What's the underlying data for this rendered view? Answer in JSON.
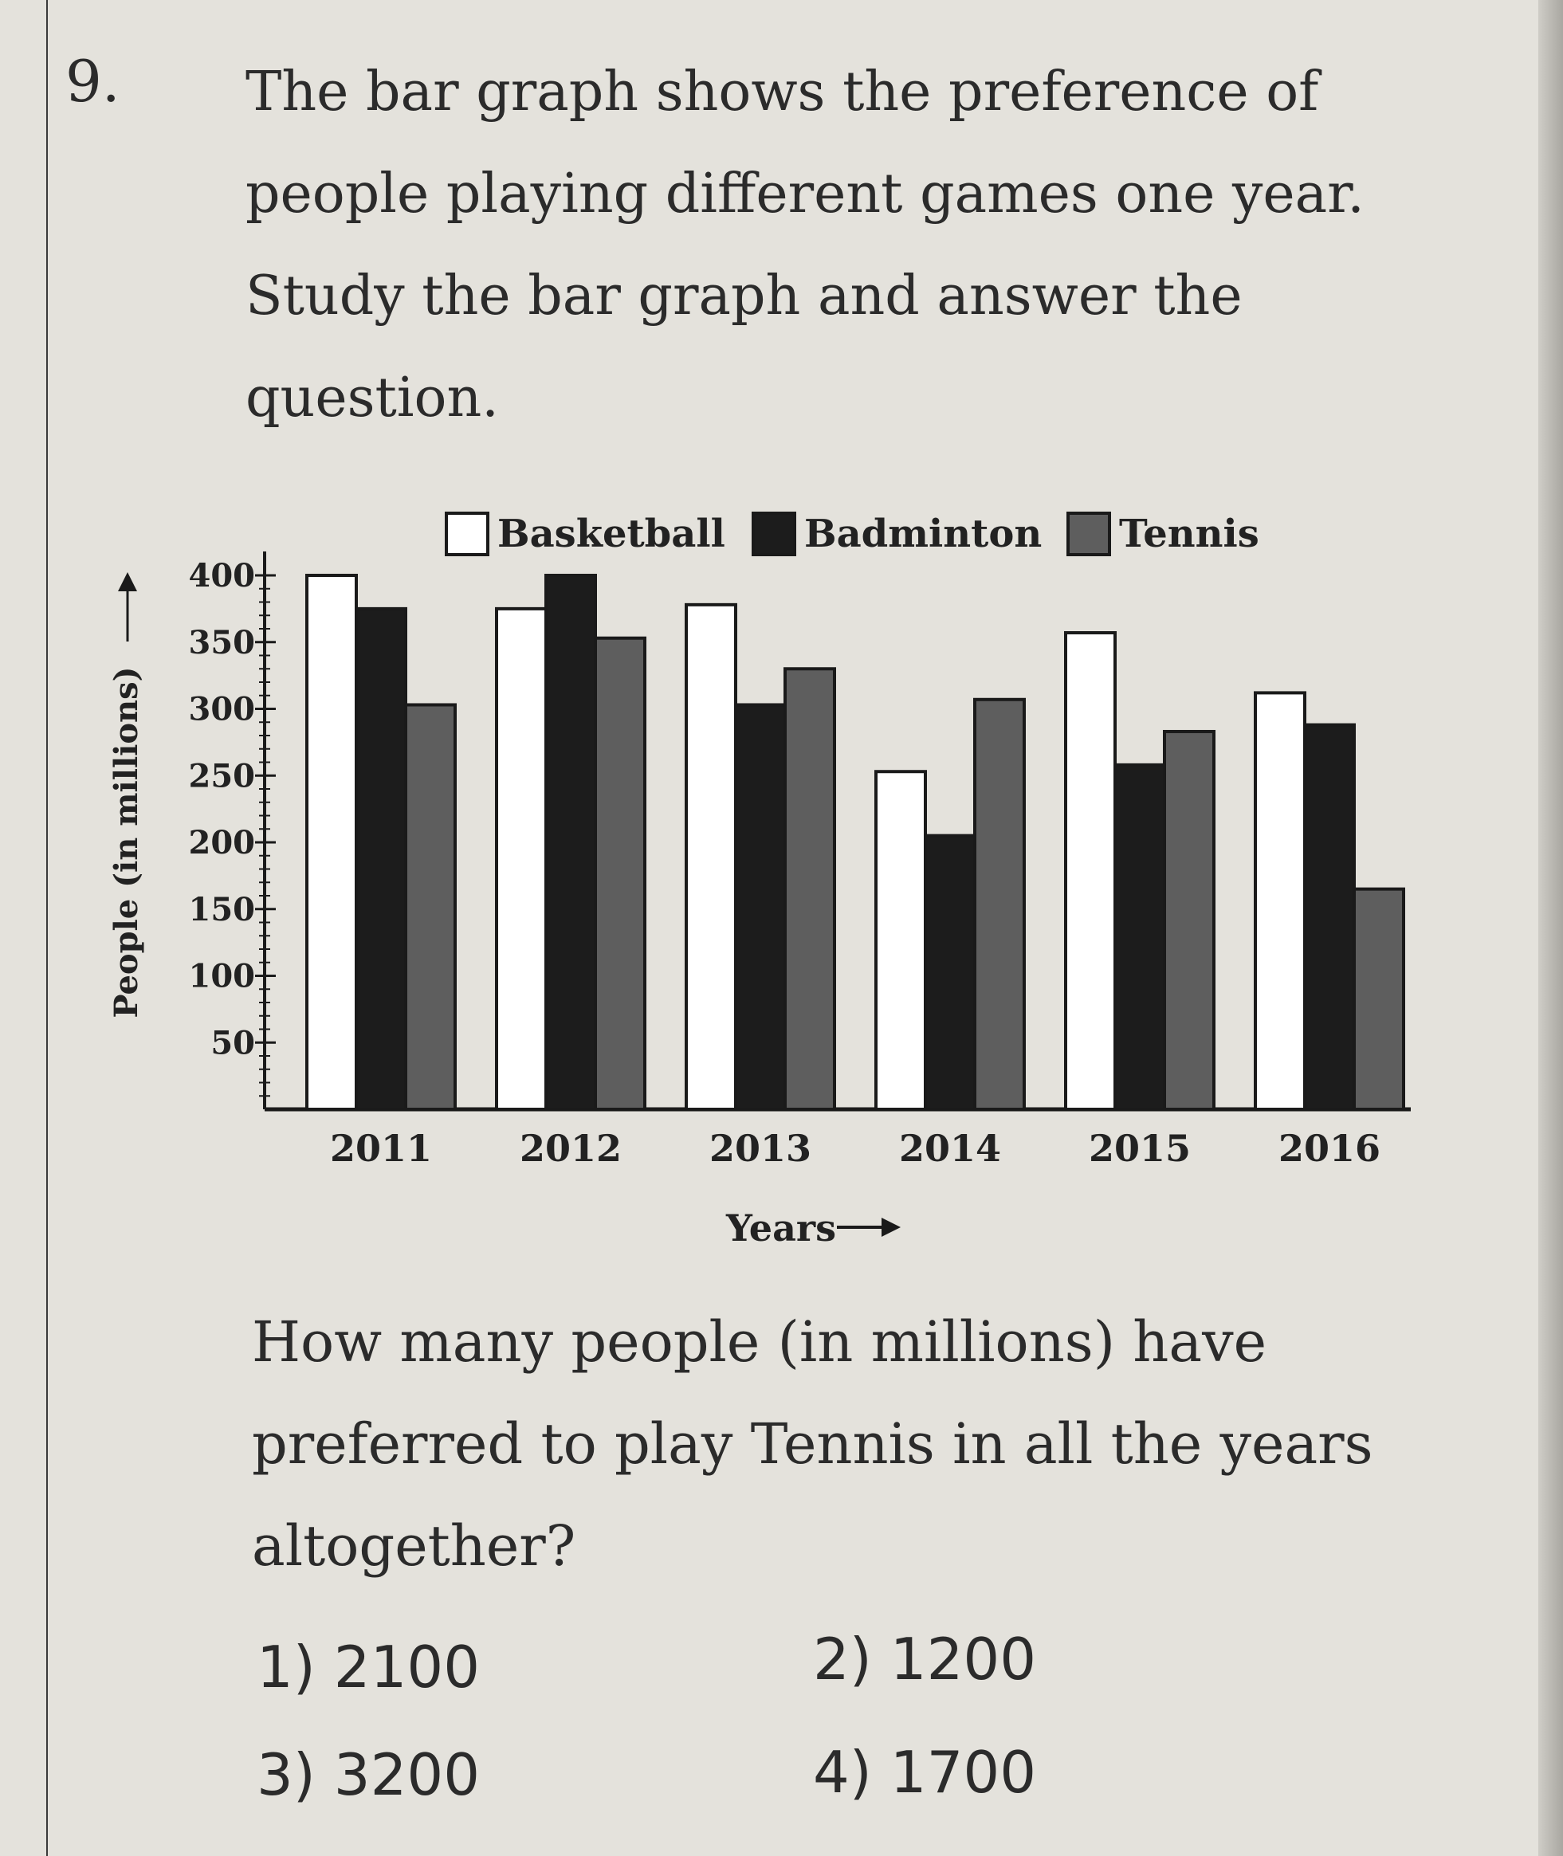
{
  "question_number": "9.",
  "stem_lines": [
    "The bar graph shows the preference of",
    "people playing different games one year.",
    "Study the bar graph and answer the",
    "question."
  ],
  "question_lines": [
    "How many people (in millions) have",
    "preferred to play Tennis in all the years",
    "altogether?"
  ],
  "options": {
    "o1": "1) 2100",
    "o2": "2) 1200",
    "o3": "3) 3200",
    "o4": "4) 1700"
  },
  "chart_data": {
    "type": "bar",
    "title": "",
    "xlabel": "Years",
    "ylabel": "People (in millions)",
    "categories": [
      "2011",
      "2012",
      "2013",
      "2014",
      "2015",
      "2016"
    ],
    "yticks": [
      50,
      100,
      150,
      200,
      250,
      300,
      350,
      400
    ],
    "ylim": [
      0,
      400
    ],
    "legend_position": "top",
    "series": [
      {
        "name": "Basketball",
        "color": "#ffffff",
        "values": [
          400,
          375,
          378,
          253,
          357,
          312
        ]
      },
      {
        "name": "Badminton",
        "color": "#1c1c1c",
        "values": [
          375,
          400,
          303,
          205,
          258,
          288
        ]
      },
      {
        "name": "Tennis",
        "color": "#5e5e5e",
        "values": [
          303,
          353,
          330,
          307,
          283,
          165
        ]
      }
    ]
  }
}
